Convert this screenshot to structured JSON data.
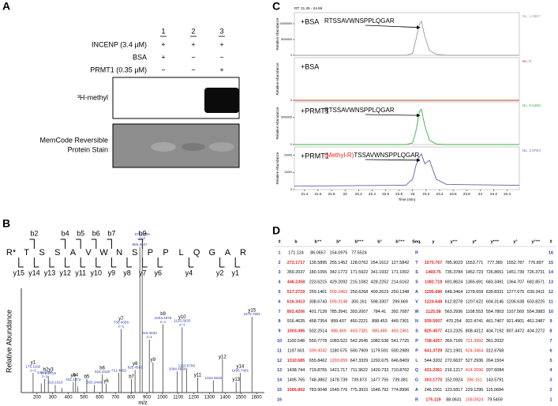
{
  "panel_a": {
    "letter": "A",
    "lanes": [
      "1",
      "2",
      "3"
    ],
    "conditions": [
      {
        "label": "INCENP (3.4 µM)",
        "signs": [
          "+",
          "+",
          "+"
        ]
      },
      {
        "label": "BSA",
        "signs": [
          "+",
          "−",
          "−"
        ]
      },
      {
        "label": "PRMT1 (0.35 µM)",
        "signs": [
          "−",
          "−",
          "+"
        ]
      }
    ],
    "blots": [
      [
        "³H-methyl"
      ],
      [
        "MemCode Reversible",
        "Protein Stain"
      ]
    ]
  },
  "panel_b": {
    "letter": "B",
    "sequence": [
      "R*",
      "T",
      "S",
      "S",
      "A",
      "V",
      "W",
      "N",
      "S",
      "P",
      "P",
      "L",
      "Q",
      "G",
      "A",
      "R"
    ],
    "b_ions": [
      null,
      "b2",
      null,
      "b4",
      "b5",
      "b6",
      "b7",
      null,
      "b9",
      null,
      null,
      null,
      null,
      null,
      null
    ],
    "y_ions": [
      "y15",
      "y14",
      "y13",
      "y12",
      "y11",
      "y10",
      "y9",
      "y8",
      "y7",
      "y6",
      null,
      "y4",
      null,
      "y2",
      "y1"
    ],
    "spectrum": {
      "x_label": "m/z",
      "y_label": "Relative Abundance",
      "color": "#555555",
      "label_color": "#2b3ea8",
      "xlim": [
        100,
        1650
      ],
      "xticks": [
        200,
        300,
        400,
        500,
        600,
        700,
        800,
        900,
        1000,
        1100,
        1200,
        1300,
        1400,
        1500,
        1600
      ],
      "ylim": [
        0,
        100
      ],
      "x": [
        175.1192,
        227.1511,
        249.1097,
        272.1719,
        316.1616,
        359.2041,
        431.2372,
        446.2362,
        460.2572,
        517.2734,
        565.3448,
        616.342,
        641.3741,
        721.4082,
        736.4056,
        802.4211,
        825.4581,
        855.9447,
        870.9605,
        916.4633,
        939.5012,
        1003.4976,
        1094.4964,
        1125.5833,
        1153.5706,
        1224.6488,
        1324.6532,
        1382.7188,
        1469.7512,
        1495.7481,
        1570.7681
      ],
      "values": [
        13,
        6,
        9,
        11,
        5,
        3,
        7,
        10,
        4,
        9,
        5,
        12,
        6,
        13,
        42,
        9,
        15,
        96,
        100,
        35,
        20,
        45,
        14,
        43,
        16,
        10,
        8,
        22,
        7,
        13,
        50
      ],
      "peak_labels": [
        [
          "y1",
          "175.1192",
          "z=1"
        ],
        null,
        [
          "249.1097",
          "z=1"
        ],
        [
          "b2y3",
          "272.1719"
        ],
        [
          "316.1616"
        ],
        null,
        [
          "y4",
          "431.2372"
        ],
        [
          "b4"
        ],
        null,
        [
          "b5"
        ],
        [
          "565.3448"
        ],
        [
          "b6",
          "616.3420"
        ],
        [
          "y6"
        ],
        [
          "721.4082"
        ],
        [
          "y7",
          "736.4056",
          "z=1"
        ],
        [
          "b7"
        ],
        [
          "y8",
          "825.4581"
        ],
        [
          "855.9447"
        ],
        [
          "870.9605",
          "z=2"
        ],
        [
          "916.4633",
          "z=1"
        ],
        [
          "y9"
        ],
        [
          "b9",
          "1003.4976",
          "z=1"
        ],
        [
          "1094.4964"
        ],
        [
          "y10",
          "1125.5833",
          "z=1"
        ],
        [
          "1153.5706"
        ],
        [
          "y11"
        ],
        [
          "1324.6532"
        ],
        [
          "y12"
        ],
        [
          "y13"
        ],
        [
          "y14",
          "1495.7481"
        ],
        [
          "y15",
          "1570.7681"
        ]
      ]
    }
  },
  "panel_c": {
    "letter": "C",
    "range_label": "RT: 21.25 - 24.58",
    "x_label": "Time (min)",
    "y_label": "Relative Abundance",
    "xlim": [
      21.25,
      24.58
    ],
    "xticks": [
      21.4,
      21.6,
      21.8,
      22.0,
      22.2,
      22.4,
      22.6,
      22.8,
      23.0,
      23.2,
      23.4,
      23.6,
      23.8,
      24.0,
      24.2,
      24.4
    ],
    "x": [
      21.25,
      22.9,
      23.0,
      23.05,
      23.1,
      23.13,
      23.18,
      23.25,
      23.35,
      23.5,
      24.58
    ],
    "traces": [
      {
        "name": "+BSA",
        "annotation": [
          "RTSSAVWNSPPLQGAR"
        ],
        "annotation_colors": [
          "#000000"
        ],
        "color": "#9a9a9a",
        "info": "NL: 1.08E7",
        "ylim": [
          0,
          12000000
        ],
        "yticks": [
          0,
          5000000,
          10000000
        ],
        "values": [
          0,
          0,
          600000,
          5000000,
          9800000,
          10800000,
          6000000,
          1500000,
          300000,
          0,
          0
        ]
      },
      {
        "name": "+BSA",
        "color": "#c0392b",
        "info": "NL: 0",
        "ylim": [
          0,
          1
        ],
        "yticks": [
          0
        ],
        "values": [
          0,
          0,
          0,
          0,
          0,
          0,
          0,
          0,
          0,
          0,
          0
        ]
      },
      {
        "name": "+PRMT1",
        "annotation": [
          "RTSSAVWNSPPLQGAR"
        ],
        "annotation_colors": [
          "#000000"
        ],
        "color": "#3cb043",
        "info": "NL: 6.54E6",
        "ylim": [
          0,
          7000000
        ],
        "yticks": [
          0,
          5000000
        ],
        "values": [
          0,
          0,
          300000,
          2500000,
          6000000,
          6540000,
          3500000,
          800000,
          100000,
          0,
          0
        ]
      },
      {
        "name": "+PRMT1",
        "annotation": [
          "(Methyl-R)",
          "TSSAVWNSPPLQGAR"
        ],
        "annotation_colors": [
          "#e8211f",
          "#000000"
        ],
        "color": "#5b5fa8",
        "info": "NL: 2.07E4",
        "ylim": [
          0,
          22000
        ],
        "yticks": [
          0,
          10000,
          20000
        ],
        "values": [
          2000,
          2500,
          6000,
          14000,
          19000,
          20700,
          15000,
          17000,
          6000,
          3000,
          2500
        ]
      }
    ]
  },
  "panel_d": {
    "letter": "D",
    "index_color": "#2b3ea8",
    "highlight_color": "#e8211f",
    "columns": [
      "#",
      "b",
      "b⁺⁺",
      "b*",
      "b*⁺⁺",
      "b°",
      "b°⁺⁺",
      "Seq.",
      "y",
      "y⁺⁺",
      "y*",
      "y*⁺⁺",
      "y°",
      "y°⁺⁺",
      "#"
    ],
    "rows": [
      [
        1,
        171.124,
        86.0657,
        154.0975,
        77.5524,
        null,
        null,
        "R",
        null,
        null,
        null,
        null,
        null,
        null,
        16
      ],
      [
        2,
        272.1717,
        136.5895,
        255.1452,
        128.0762,
        254.1612,
        127.5842,
        "T",
        1570.767,
        785.9023,
        1553.771,
        777.389,
        1552.787,
        776.897,
        15
      ],
      [
        3,
        359.2037,
        180.1055,
        342.1772,
        171.5922,
        341.1932,
        171.1002,
        "S",
        1469.75,
        735.3784,
        1452.723,
        726.8651,
        1451.739,
        726.3731,
        14
      ],
      [
        4,
        446.2358,
        223.6215,
        429.2092,
        215.1082,
        428.2252,
        214.6162,
        "S",
        1382.718,
        691.8624,
        1365.691,
        683.3491,
        1364.707,
        682.8571,
        13
      ],
      [
        5,
        517.2729,
        259.1401,
        500.2463,
        250.6268,
        499.2623,
        250.1348,
        "A",
        1295.686,
        648.3464,
        1278.659,
        639.8331,
        1277.675,
        639.3411,
        12
      ],
      [
        6,
        616.3413,
        308.6743,
        599.3148,
        300.161,
        598.3307,
        299.669,
        "V",
        1224.648,
        612.8278,
        1207.622,
        604.3146,
        1206.638,
        603.8225,
        11
      ],
      [
        7,
        802.4206,
        401.7139,
        785.3941,
        393.2007,
        784.41,
        392.7087,
        "W",
        1125.58,
        563.2936,
        1108.553,
        554.7803,
        1107.569,
        554.2883,
        10
      ],
      [
        8,
        916.4635,
        458.7354,
        899.437,
        450.2221,
        898.453,
        449.7301,
        "N",
        939.5007,
        470.254,
        922.4741,
        461.7407,
        921.4901,
        461.2487,
        9
      ],
      [
        9,
        1003.496,
        502.2514,
        986.469,
        493.7381,
        985.485,
        493.2461,
        "S",
        825.4577,
        413.2325,
        808.4312,
        404.7192,
        807.4472,
        404.2272,
        8
      ],
      [
        10,
        1100.548,
        550.7778,
        1083.522,
        542.2645,
        1082.538,
        541.7725,
        "P",
        738.4257,
        369.7165,
        721.3992,
        361.2032,
        null,
        null,
        7
      ],
      [
        11,
        1197.601,
        599.3042,
        1180.575,
        590.7909,
        1179.591,
        590.2989,
        "P",
        641.3729,
        321.1901,
        624.3464,
        312.6768,
        null,
        null,
        6
      ],
      [
        12,
        1310.685,
        655.8462,
        1293.659,
        647.3329,
        1292.675,
        646.8409,
        "L",
        544.3202,
        272.6637,
        527.2936,
        264.1504,
        null,
        null,
        5
      ],
      [
        13,
        1438.744,
        719.8755,
        1421.717,
        711.3622,
        1420.733,
        710.8702,
        "Q",
        431.2361,
        216.1217,
        414.2096,
        207.6084,
        null,
        null,
        4
      ],
      [
        14,
        1495.765,
        748.3862,
        1478.739,
        739.873,
        1477.755,
        739.381,
        "G",
        303.1775,
        152.0924,
        286.151,
        143.5791,
        null,
        null,
        3
      ],
      [
        15,
        1566.802,
        783.9048,
        1549.776,
        775.3915,
        1548.792,
        774.8996,
        "A",
        246.1561,
        123.5817,
        229.1296,
        115.0684,
        null,
        null,
        2
      ],
      [
        16,
        null,
        null,
        null,
        null,
        null,
        null,
        "R",
        175.119,
        88.0631,
        158.0924,
        79.5459,
        null,
        null,
        1
      ]
    ],
    "highlighted": [
      [
        1,
        1
      ],
      [
        3,
        1
      ],
      [
        4,
        1
      ],
      [
        5,
        1
      ],
      [
        6,
        1
      ],
      [
        8,
        1
      ],
      [
        11,
        1
      ],
      [
        14,
        1
      ],
      [
        10,
        2
      ],
      [
        4,
        3
      ],
      [
        5,
        3
      ],
      [
        8,
        3
      ],
      [
        11,
        3
      ],
      [
        8,
        4
      ],
      [
        8,
        5
      ],
      [
        8,
        6
      ],
      [
        1,
        8
      ],
      [
        2,
        8
      ],
      [
        3,
        8
      ],
      [
        4,
        8
      ],
      [
        5,
        8
      ],
      [
        6,
        8
      ],
      [
        7,
        8
      ],
      [
        8,
        8
      ],
      [
        9,
        8
      ],
      [
        10,
        8
      ],
      [
        12,
        8
      ],
      [
        13,
        8
      ],
      [
        15,
        8
      ],
      [
        9,
        10
      ],
      [
        10,
        10
      ],
      [
        12,
        10
      ],
      [
        13,
        10
      ],
      [
        15,
        10
      ]
    ]
  }
}
